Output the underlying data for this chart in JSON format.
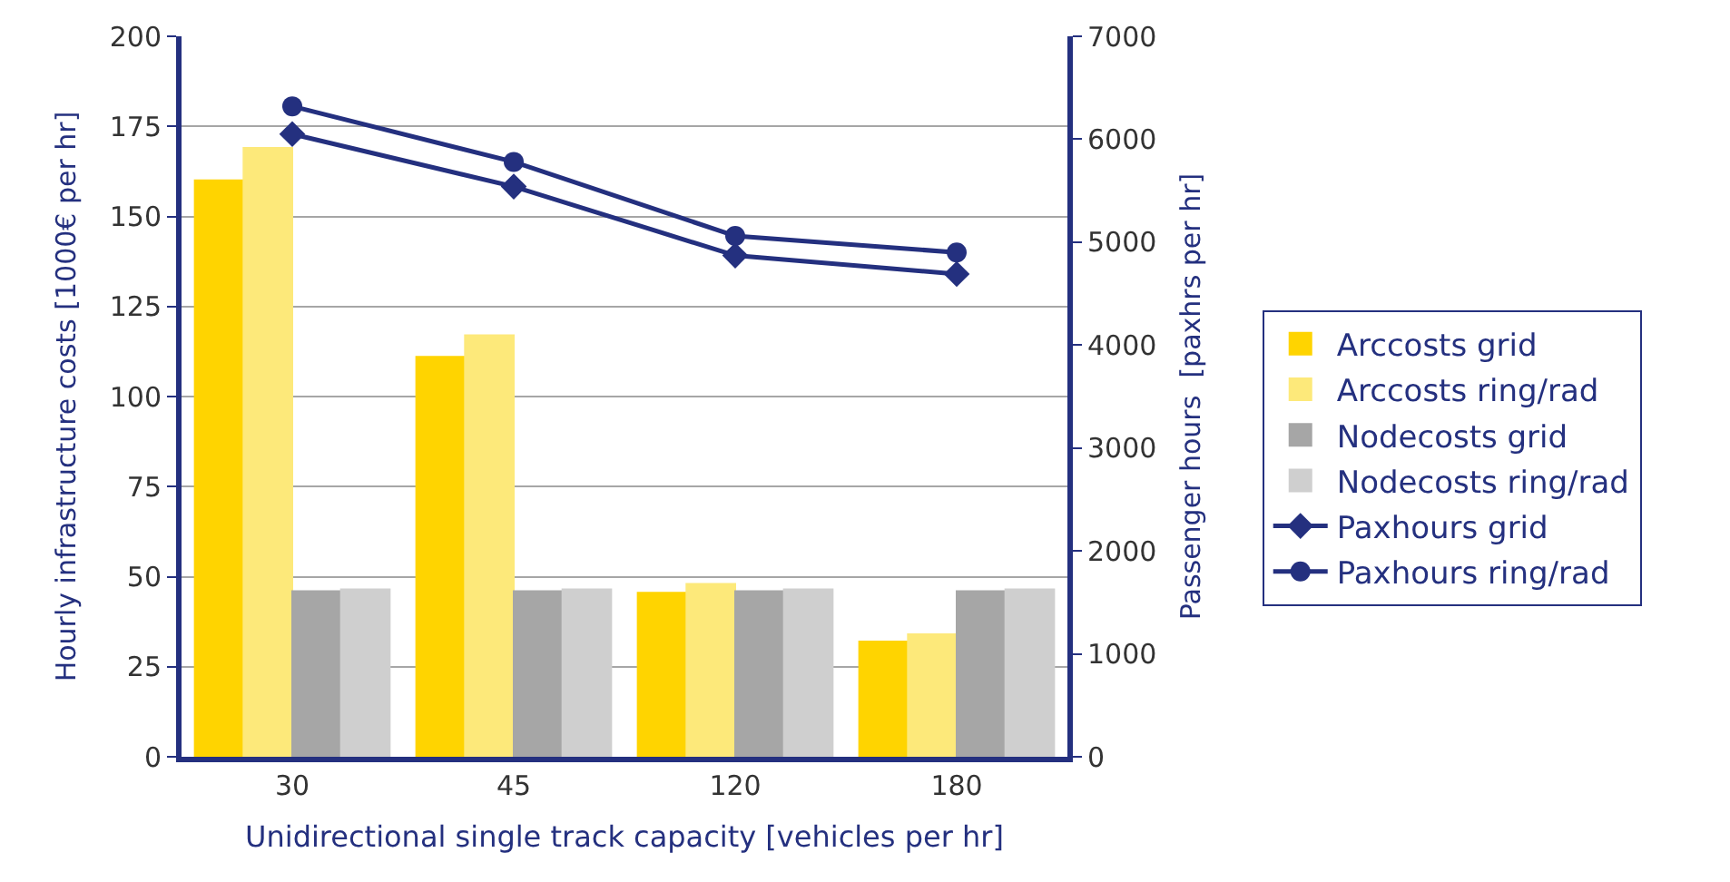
{
  "chart_data": {
    "type": "bar",
    "xlabel": "Unidirectional single track capacity [vehicles per hr]",
    "ylabel": "Hourly infrastructure costs [1000€ per hr]",
    "y2label": "Passenger hours  [paxhrs per hr]",
    "categories": [
      "30",
      "45",
      "120",
      "180"
    ],
    "series": [
      {
        "name": "Arccosts grid",
        "color": "#ffd400",
        "values": [
          160,
          111,
          45.5,
          32
        ]
      },
      {
        "name": "Arccosts ring/rad",
        "color": "#fde97a",
        "values": [
          169,
          117,
          48,
          34
        ]
      },
      {
        "name": "Nodecosts grid",
        "color": "#a6a6a6",
        "values": [
          46,
          46,
          46,
          46
        ]
      },
      {
        "name": "Nodecosts ring/rad",
        "color": "#cfcfcf",
        "values": [
          46.5,
          46.5,
          46.5,
          46.5
        ]
      },
      {
        "name": "Paxhours grid",
        "type": "line",
        "axis": "y2",
        "marker": "diamond",
        "color": "#24307f",
        "values": [
          6050,
          5540,
          4870,
          4690
        ]
      },
      {
        "name": "Paxhours ring/rad",
        "type": "line",
        "axis": "y2",
        "marker": "circle",
        "color": "#24307f",
        "values": [
          6320,
          5780,
          5060,
          4900
        ]
      }
    ],
    "ylim": [
      0,
      200
    ],
    "yticks": [
      0,
      25,
      50,
      75,
      100,
      125,
      150,
      175,
      200
    ],
    "y2lim": [
      0,
      7000
    ],
    "y2ticks": [
      0,
      1000,
      2000,
      3000,
      4000,
      5000,
      6000,
      7000
    ],
    "grid": "y",
    "legend": "right"
  }
}
